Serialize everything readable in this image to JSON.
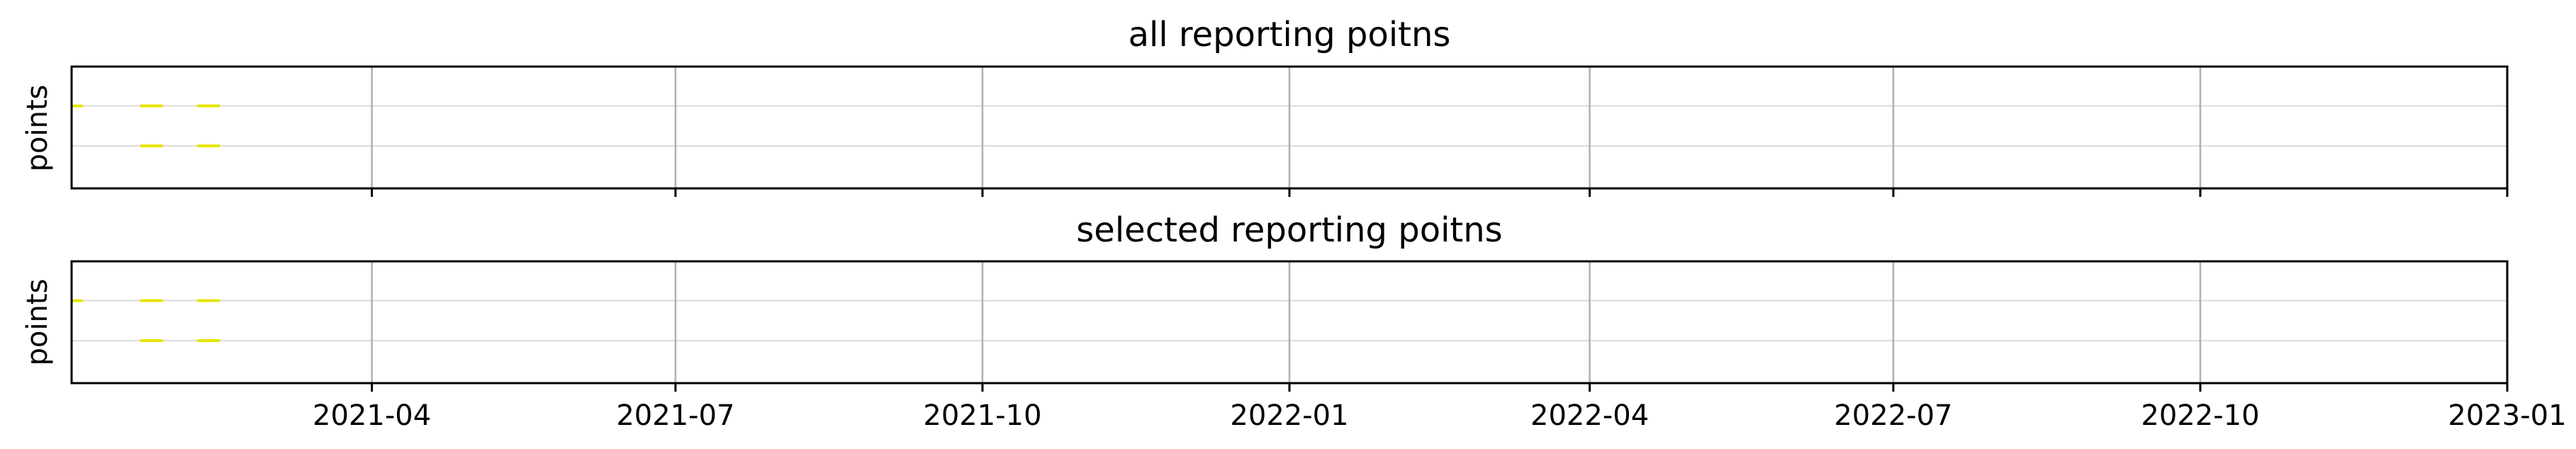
{
  "chart_data": [
    {
      "type": "scatter",
      "title": "all reporting poitns",
      "ylabel": "points",
      "xlim": [
        "2021-01-01",
        "2023-01-01"
      ],
      "x_ticks": [
        "2021-04",
        "2021-07",
        "2021-10",
        "2022-01",
        "2022-04",
        "2022-07",
        "2022-10",
        "2023-01"
      ],
      "show_x_tick_labels": false,
      "grid": true,
      "marker": "horizontal-dash",
      "color": "#e6e600",
      "series": [
        {
          "row": 2,
          "x": [
            "2021-01-01",
            "2021-01-25",
            "2021-02-11"
          ]
        },
        {
          "row": 1,
          "x": [
            "2021-01-25",
            "2021-02-11"
          ]
        }
      ]
    },
    {
      "type": "scatter",
      "title": "selected reporting poitns",
      "ylabel": "points",
      "xlim": [
        "2021-01-01",
        "2023-01-01"
      ],
      "x_ticks": [
        "2021-04",
        "2021-07",
        "2021-10",
        "2022-01",
        "2022-04",
        "2022-07",
        "2022-10",
        "2023-01"
      ],
      "show_x_tick_labels": true,
      "grid": true,
      "marker": "horizontal-dash",
      "color": "#e6e600",
      "series": [
        {
          "row": 2,
          "x": [
            "2021-01-01",
            "2021-01-25",
            "2021-02-11"
          ]
        },
        {
          "row": 1,
          "x": [
            "2021-01-25",
            "2021-02-11"
          ]
        }
      ]
    }
  ]
}
